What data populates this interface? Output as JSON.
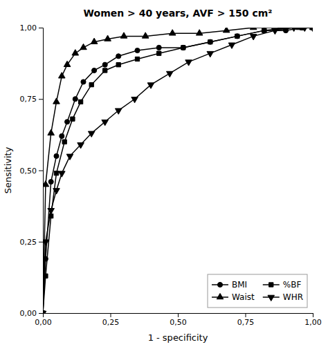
{
  "chart_data": {
    "type": "line",
    "title": "Women > 40 years, AVF > 150 cm²",
    "xlabel": "1 - specificity",
    "ylabel": "Sensitivity",
    "xlim": [
      0,
      1.0
    ],
    "ylim": [
      0,
      1.0
    ],
    "xticks": [
      {
        "value": 0.0,
        "label": "0,00"
      },
      {
        "value": 0.25,
        "label": "0,25"
      },
      {
        "value": 0.5,
        "label": "0,50"
      },
      {
        "value": 0.75,
        "label": "0,75"
      },
      {
        "value": 1.0,
        "label": "1,00"
      }
    ],
    "yticks": [
      {
        "value": 0.0,
        "label": "0,00"
      },
      {
        "value": 0.25,
        "label": "0,25"
      },
      {
        "value": 0.5,
        "label": "0,50"
      },
      {
        "value": 0.75,
        "label": "0,75"
      },
      {
        "value": 1.0,
        "label": "1,00"
      }
    ],
    "grid": false,
    "legend": "lower right",
    "series": [
      {
        "name": "BMI",
        "color": "#000000",
        "marker": "circle",
        "x": [
          0.0,
          0.01,
          0.03,
          0.05,
          0.07,
          0.09,
          0.12,
          0.15,
          0.19,
          0.23,
          0.28,
          0.35,
          0.43,
          0.52,
          0.62,
          0.72,
          0.82,
          0.9,
          0.96,
          1.0
        ],
        "values": [
          0.0,
          0.19,
          0.46,
          0.55,
          0.62,
          0.67,
          0.75,
          0.81,
          0.85,
          0.87,
          0.9,
          0.92,
          0.93,
          0.93,
          0.95,
          0.97,
          0.99,
          0.99,
          1.0,
          1.0
        ]
      },
      {
        "name": "%BF",
        "color": "#000000",
        "marker": "square",
        "x": [
          0.0,
          0.01,
          0.03,
          0.05,
          0.08,
          0.11,
          0.14,
          0.18,
          0.23,
          0.28,
          0.35,
          0.43,
          0.52,
          0.62,
          0.72,
          0.82,
          0.9,
          0.96,
          1.0
        ],
        "values": [
          0.0,
          0.13,
          0.34,
          0.49,
          0.6,
          0.68,
          0.74,
          0.8,
          0.85,
          0.87,
          0.89,
          0.91,
          0.93,
          0.95,
          0.97,
          0.99,
          1.0,
          1.0,
          1.0
        ]
      },
      {
        "name": "Waist",
        "color": "#000000",
        "marker": "triangle-up",
        "x": [
          0.0,
          0.01,
          0.03,
          0.05,
          0.07,
          0.09,
          0.12,
          0.15,
          0.19,
          0.24,
          0.3,
          0.38,
          0.48,
          0.58,
          0.68,
          0.78,
          0.88,
          0.95,
          1.0
        ],
        "values": [
          0.0,
          0.45,
          0.63,
          0.74,
          0.83,
          0.87,
          0.91,
          0.93,
          0.95,
          0.96,
          0.97,
          0.97,
          0.98,
          0.98,
          0.99,
          1.0,
          1.0,
          1.0,
          1.0
        ]
      },
      {
        "name": "WHR",
        "color": "#000000",
        "marker": "triangle-down",
        "x": [
          0.0,
          0.01,
          0.03,
          0.05,
          0.07,
          0.1,
          0.14,
          0.18,
          0.23,
          0.28,
          0.34,
          0.4,
          0.47,
          0.54,
          0.62,
          0.7,
          0.78,
          0.86,
          0.93,
          0.97,
          1.0
        ],
        "values": [
          0.0,
          0.25,
          0.36,
          0.43,
          0.49,
          0.55,
          0.59,
          0.63,
          0.67,
          0.71,
          0.75,
          0.8,
          0.84,
          0.88,
          0.91,
          0.94,
          0.97,
          0.99,
          1.0,
          1.0,
          1.0
        ]
      }
    ]
  }
}
